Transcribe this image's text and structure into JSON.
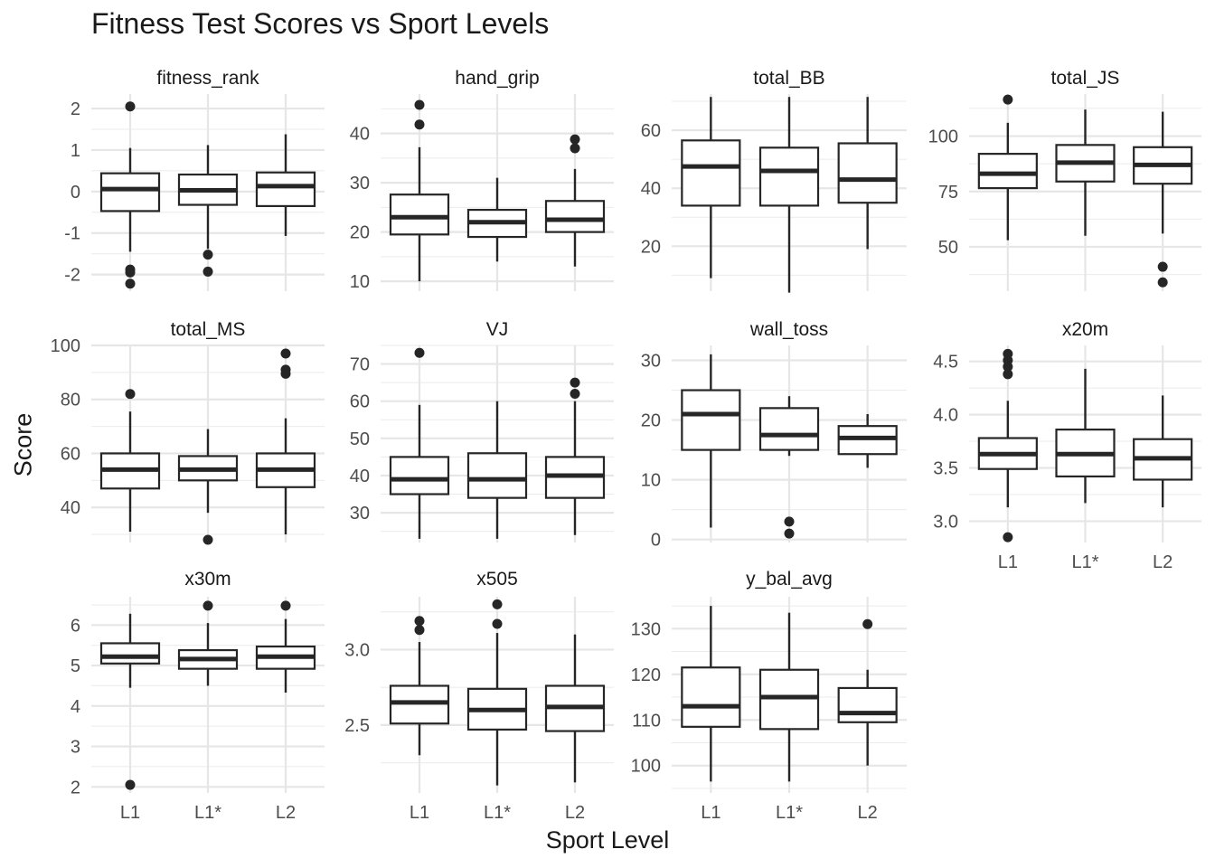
{
  "title": "Fitness Test Scores vs Sport Levels",
  "xlabel": "Sport Level",
  "ylabel": "Score",
  "chart_data": {
    "type": "boxplot",
    "categories": [
      "L1",
      "L1*",
      "L2"
    ],
    "grid": true,
    "facets": [
      {
        "name": "fitness_rank",
        "ylim": [
          -2.4,
          2.35
        ],
        "yticks": [
          -2,
          -1,
          0,
          1,
          2
        ],
        "ytick_labels": [
          "-2",
          "-1",
          "0",
          "1",
          "2"
        ],
        "boxes": [
          {
            "cat": "L1",
            "min": -1.45,
            "q1": -0.47,
            "median": 0.06,
            "q3": 0.44,
            "max": 1.05,
            "outliers": [
              2.05,
              -1.88,
              -1.95,
              -2.22
            ]
          },
          {
            "cat": "L1*",
            "min": -1.38,
            "q1": -0.32,
            "median": 0.03,
            "q3": 0.41,
            "max": 1.12,
            "outliers": [
              -1.52,
              -1.93
            ]
          },
          {
            "cat": "L2",
            "min": -1.07,
            "q1": -0.35,
            "median": 0.13,
            "q3": 0.46,
            "max": 1.38,
            "outliers": []
          }
        ]
      },
      {
        "name": "hand_grip",
        "ylim": [
          8,
          48
        ],
        "yticks": [
          10,
          20,
          30,
          40
        ],
        "ytick_labels": [
          "10",
          "20",
          "30",
          "40"
        ],
        "boxes": [
          {
            "cat": "L1",
            "min": 10,
            "q1": 19.5,
            "median": 23,
            "q3": 27.6,
            "max": 37.2,
            "outliers": [
              41.8,
              45.8
            ]
          },
          {
            "cat": "L1*",
            "min": 14,
            "q1": 19,
            "median": 22,
            "q3": 24.5,
            "max": 31,
            "outliers": []
          },
          {
            "cat": "L2",
            "min": 13,
            "q1": 20,
            "median": 22.5,
            "q3": 26.3,
            "max": 32.8,
            "outliers": [
              37,
              38.8
            ]
          }
        ]
      },
      {
        "name": "total_BB",
        "ylim": [
          4.5,
          72.5
        ],
        "yticks": [
          20,
          40,
          60
        ],
        "ytick_labels": [
          "20",
          "40",
          "60"
        ],
        "boxes": [
          {
            "cat": "L1",
            "min": 9,
            "q1": 34,
            "median": 47.5,
            "q3": 56.5,
            "max": 71.5,
            "outliers": []
          },
          {
            "cat": "L1*",
            "min": 4,
            "q1": 34,
            "median": 46,
            "q3": 54,
            "max": 71.5,
            "outliers": []
          },
          {
            "cat": "L2",
            "min": 19,
            "q1": 35,
            "median": 43,
            "q3": 55.5,
            "max": 71.5,
            "outliers": []
          }
        ]
      },
      {
        "name": "total_JS",
        "ylim": [
          30,
          119
        ],
        "yticks": [
          50,
          75,
          100
        ],
        "ytick_labels": [
          "50",
          "75",
          "100"
        ],
        "boxes": [
          {
            "cat": "L1",
            "min": 53,
            "q1": 76.5,
            "median": 83,
            "q3": 92,
            "max": 106,
            "outliers": [
              116.5
            ]
          },
          {
            "cat": "L1*",
            "min": 55,
            "q1": 79.5,
            "median": 88,
            "q3": 96,
            "max": 112,
            "outliers": []
          },
          {
            "cat": "L2",
            "min": 56,
            "q1": 78.5,
            "median": 87,
            "q3": 95,
            "max": 111,
            "outliers": [
              41,
              34
            ]
          }
        ]
      },
      {
        "name": "total_MS",
        "ylim": [
          27,
          100
        ],
        "yticks": [
          40,
          60,
          80,
          100
        ],
        "ytick_labels": [
          "40",
          "60",
          "80",
          "100"
        ],
        "boxes": [
          {
            "cat": "L1",
            "min": 31,
            "q1": 47,
            "median": 54,
            "q3": 60,
            "max": 75.5,
            "outliers": [
              82
            ]
          },
          {
            "cat": "L1*",
            "min": 38,
            "q1": 50,
            "median": 54,
            "q3": 59,
            "max": 69,
            "outliers": [
              28
            ]
          },
          {
            "cat": "L2",
            "min": 30,
            "q1": 47.5,
            "median": 54,
            "q3": 60,
            "max": 73,
            "outliers": [
              97,
              91,
              89.5
            ]
          }
        ]
      },
      {
        "name": "VJ",
        "ylim": [
          22,
          75
        ],
        "yticks": [
          30,
          40,
          50,
          60,
          70
        ],
        "ytick_labels": [
          "30",
          "40",
          "50",
          "60",
          "70"
        ],
        "boxes": [
          {
            "cat": "L1",
            "min": 23,
            "q1": 35,
            "median": 39,
            "q3": 45,
            "max": 59,
            "outliers": [
              73
            ]
          },
          {
            "cat": "L1*",
            "min": 23,
            "q1": 34,
            "median": 39,
            "q3": 46,
            "max": 60,
            "outliers": []
          },
          {
            "cat": "L2",
            "min": 24,
            "q1": 34,
            "median": 40,
            "q3": 45,
            "max": 60,
            "outliers": [
              65,
              62
            ]
          }
        ]
      },
      {
        "name": "wall_toss",
        "ylim": [
          -0.5,
          32.5
        ],
        "yticks": [
          0,
          10,
          20,
          30
        ],
        "ytick_labels": [
          "0",
          "10",
          "20",
          "30"
        ],
        "boxes": [
          {
            "cat": "L1",
            "min": 2,
            "q1": 15,
            "median": 21,
            "q3": 25,
            "max": 31,
            "outliers": []
          },
          {
            "cat": "L1*",
            "min": 14,
            "q1": 15,
            "median": 17.5,
            "q3": 22,
            "max": 24,
            "outliers": [
              3,
              1
            ]
          },
          {
            "cat": "L2",
            "min": 12,
            "q1": 14.3,
            "median": 17,
            "q3": 19,
            "max": 21,
            "outliers": []
          }
        ]
      },
      {
        "name": "x20m",
        "ylim": [
          2.8,
          4.65
        ],
        "yticks": [
          3.0,
          3.5,
          4.0,
          4.5
        ],
        "ytick_labels": [
          "3.0",
          "3.5",
          "4.0",
          "4.5"
        ],
        "boxes": [
          {
            "cat": "L1",
            "min": 3.13,
            "q1": 3.49,
            "median": 3.63,
            "q3": 3.78,
            "max": 4.13,
            "outliers": [
              4.57,
              4.51,
              4.45,
              4.38,
              2.85
            ]
          },
          {
            "cat": "L1*",
            "min": 3.17,
            "q1": 3.42,
            "median": 3.63,
            "q3": 3.86,
            "max": 4.43,
            "outliers": []
          },
          {
            "cat": "L2",
            "min": 3.13,
            "q1": 3.39,
            "median": 3.59,
            "q3": 3.77,
            "max": 4.18,
            "outliers": []
          }
        ]
      },
      {
        "name": "x30m",
        "ylim": [
          1.85,
          6.7
        ],
        "yticks": [
          2,
          3,
          4,
          5,
          6
        ],
        "ytick_labels": [
          "2",
          "3",
          "4",
          "5",
          "6"
        ],
        "boxes": [
          {
            "cat": "L1",
            "min": 4.45,
            "q1": 5.05,
            "median": 5.22,
            "q3": 5.55,
            "max": 6.28,
            "outliers": [
              2.05
            ]
          },
          {
            "cat": "L1*",
            "min": 4.5,
            "q1": 4.92,
            "median": 5.16,
            "q3": 5.38,
            "max": 6.05,
            "outliers": [
              6.48
            ]
          },
          {
            "cat": "L2",
            "min": 4.33,
            "q1": 4.92,
            "median": 5.22,
            "q3": 5.47,
            "max": 6.15,
            "outliers": [
              6.48
            ]
          }
        ]
      },
      {
        "name": "x505",
        "ylim": [
          2.05,
          3.35
        ],
        "yticks": [
          2.5,
          3.0
        ],
        "ytick_labels": [
          "2.5",
          "3.0"
        ],
        "boxes": [
          {
            "cat": "L1",
            "min": 2.3,
            "q1": 2.51,
            "median": 2.65,
            "q3": 2.76,
            "max": 3.05,
            "outliers": [
              3.19,
              3.13
            ]
          },
          {
            "cat": "L1*",
            "min": 2.1,
            "q1": 2.47,
            "median": 2.6,
            "q3": 2.74,
            "max": 3.11,
            "outliers": [
              3.3,
              3.17
            ]
          },
          {
            "cat": "L2",
            "min": 2.12,
            "q1": 2.46,
            "median": 2.62,
            "q3": 2.76,
            "max": 3.1,
            "outliers": []
          }
        ]
      },
      {
        "name": "y_bal_avg",
        "ylim": [
          94,
          137
        ],
        "yticks": [
          100,
          110,
          120,
          130
        ],
        "ytick_labels": [
          "100",
          "110",
          "120",
          "130"
        ],
        "boxes": [
          {
            "cat": "L1",
            "min": 96.5,
            "q1": 108.5,
            "median": 113,
            "q3": 121.5,
            "max": 135,
            "outliers": []
          },
          {
            "cat": "L1*",
            "min": 96.5,
            "q1": 108,
            "median": 115,
            "q3": 121,
            "max": 133.5,
            "outliers": []
          },
          {
            "cat": "L2",
            "min": 100,
            "q1": 109.5,
            "median": 111.5,
            "q3": 117,
            "max": 121,
            "outliers": [
              131
            ]
          }
        ]
      }
    ]
  }
}
